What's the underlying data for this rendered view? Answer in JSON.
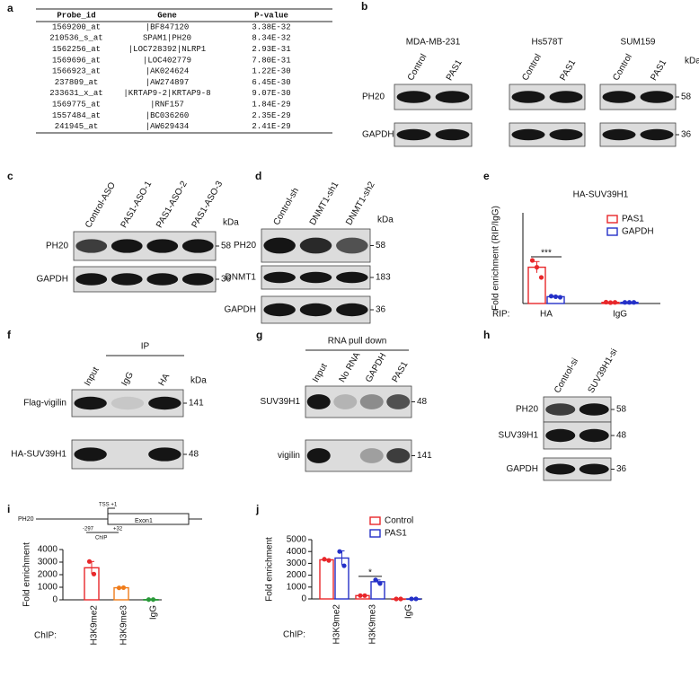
{
  "panel_labels": [
    "a",
    "b",
    "c",
    "d",
    "e",
    "f",
    "g",
    "h",
    "i",
    "j"
  ],
  "table": {
    "header": [
      "Probe_id",
      "Gene",
      "P-value"
    ],
    "rows": [
      [
        "1569200_at",
        "|BF847120",
        "3.38E-32"
      ],
      [
        "210536_s_at",
        "SPAM1|PH20",
        "8.34E-32"
      ],
      [
        "1562256_at",
        "|LOC728392|NLRP1",
        "2.93E-31"
      ],
      [
        "1569696_at",
        "|LOC402779",
        "7.80E-31"
      ],
      [
        "1566923_at",
        "|AK024624",
        "1.22E-30"
      ],
      [
        "237809_at",
        "|AW274897",
        "6.45E-30"
      ],
      [
        "233631_x_at",
        "|KRTAP9-2|KRTAP9-8",
        "9.07E-30"
      ],
      [
        "1569775_at",
        "|RNF157",
        "1.84E-29"
      ],
      [
        "1557484_at",
        "|BC036260",
        "2.35E-29"
      ],
      [
        "241945_at",
        "|AW629434",
        "2.41E-29"
      ]
    ]
  },
  "blots": {
    "b": {
      "groups": [
        {
          "name": "MDA-MB-231",
          "lanes": [
            "Control",
            "PAS1"
          ]
        },
        {
          "name": "Hs578T",
          "lanes": [
            "Control",
            "PAS1"
          ]
        },
        {
          "name": "SUM159",
          "lanes": [
            "Control",
            "PAS1"
          ]
        }
      ],
      "proteins": [
        "PH20",
        "GAPDH"
      ],
      "unit": "kDa",
      "sizes": [
        "58",
        "36"
      ]
    },
    "c": {
      "lanes": [
        "Control-ASO",
        "PAS1-ASO-1",
        "PAS1-ASO-2",
        "PAS1-ASO-3"
      ],
      "proteins": [
        "PH20",
        "GAPDH"
      ],
      "unit": "kDa",
      "sizes": [
        "58",
        "36"
      ]
    },
    "d": {
      "lanes": [
        "Control-sh",
        "DNMT1-sh1",
        "DNMT1-sh2"
      ],
      "proteins": [
        "PH20",
        "DNMT1",
        "GAPDH"
      ],
      "unit": "kDa",
      "sizes": [
        "58",
        "183",
        "36"
      ]
    },
    "f": {
      "header": "IP",
      "lanes": [
        "Input",
        "IgG",
        "HA"
      ],
      "proteins": [
        "Flag-vigilin",
        "HA-SUV39H1"
      ],
      "unit": "kDa",
      "sizes": [
        "141",
        "48"
      ]
    },
    "g": {
      "header": "RNA pull down",
      "lanes": [
        "Input",
        "No RNA",
        "GAPDH",
        "PAS1"
      ],
      "proteins": [
        "SUV39H1",
        "vigilin"
      ],
      "sizes": [
        "48",
        "141"
      ]
    },
    "h": {
      "lanes": [
        "Control-si",
        "SUV39H1-si"
      ],
      "proteins": [
        "PH20",
        "SUV39H1",
        "GAPDH"
      ],
      "sizes": [
        "58",
        "48",
        "36"
      ]
    }
  },
  "gene_diagram": {
    "gene": "PH20",
    "tss": "TSS +1",
    "exon": "Exon1",
    "start": "-297",
    "end": "+32",
    "region": "ChIP"
  },
  "chart_data": [
    {
      "type": "bar",
      "title": "HA-SUV39H1",
      "y_label": "Fold enrichment (RIP/IgG)",
      "x_prefix": "RIP:",
      "categories": [
        "HA",
        "IgG"
      ],
      "ylim": [
        0,
        80
      ],
      "series": [
        {
          "name": "PAS1",
          "color": "#e8272a",
          "values": [
            32,
            1
          ],
          "errors": [
            5,
            0.3
          ],
          "points": [
            [
              38,
              32,
              23
            ],
            [
              1.2,
              0.8,
              1
            ]
          ]
        },
        {
          "name": "GAPDH",
          "color": "#2430c8",
          "values": [
            6,
            1
          ],
          "errors": [
            0.5,
            0.2
          ],
          "points": [
            [
              6.5,
              6,
              5.5
            ],
            [
              1,
              1,
              1
            ]
          ]
        }
      ],
      "annotations": [
        "***"
      ]
    },
    {
      "type": "bar",
      "y_label": "Fold enrichment",
      "x_prefix": "ChIP:",
      "categories": [
        "H3K9me2",
        "H3K9me3",
        "IgG"
      ],
      "ylim": [
        0,
        4000
      ],
      "yticks": [
        0,
        1000,
        2000,
        3000,
        4000
      ],
      "colors": [
        "#e8272a",
        "#f07c1a",
        "#2a9a3a"
      ],
      "values": [
        2550,
        960,
        20
      ],
      "errors": [
        500,
        10,
        5
      ],
      "points": [
        [
          3050,
          2050
        ],
        [
          950,
          970
        ],
        [
          20,
          20
        ]
      ]
    },
    {
      "type": "bar",
      "y_label": "Fold enrichment",
      "x_prefix": "ChIP:",
      "categories": [
        "H3K9me2",
        "H3K9me3",
        "IgG"
      ],
      "ylim": [
        0,
        5000
      ],
      "yticks": [
        0,
        1000,
        2000,
        3000,
        4000,
        5000
      ],
      "series": [
        {
          "name": "Control",
          "color": "#e8272a",
          "values": [
            3300,
            280,
            0
          ],
          "errors": [
            50,
            20,
            5
          ],
          "points": [
            [
              3350,
              3250
            ],
            [
              280,
              280
            ],
            [
              0,
              0
            ]
          ]
        },
        {
          "name": "PAS1",
          "color": "#2430c8",
          "values": [
            3450,
            1450,
            5
          ],
          "errors": [
            600,
            150,
            5
          ],
          "points": [
            [
              4000,
              2800
            ],
            [
              1600,
              1300
            ],
            [
              5,
              5
            ]
          ]
        }
      ],
      "annotations": [
        "*"
      ]
    }
  ]
}
